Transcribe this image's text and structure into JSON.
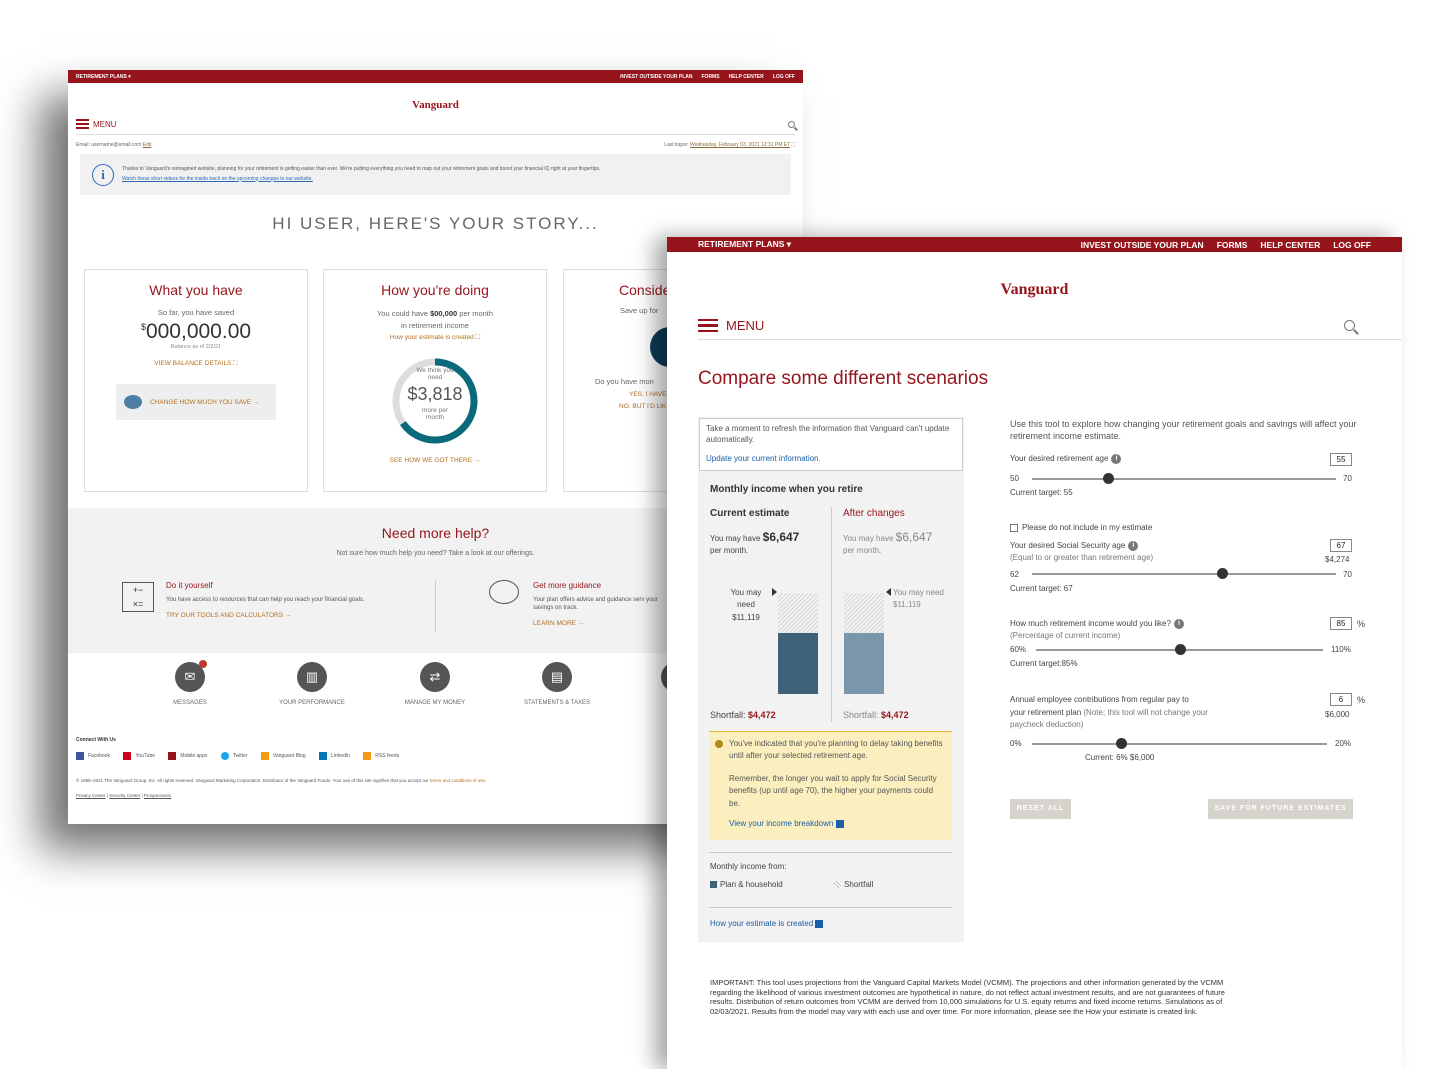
{
  "back": {
    "topbar": {
      "left": "RETIREMENT PLANS ▾",
      "links": [
        "INVEST OUTSIDE YOUR PLAN",
        "FORMS",
        "HELP CENTER",
        "LOG OFF"
      ]
    },
    "logo": "Vanguard",
    "menu": "MENU",
    "email": "Email: username@email.com",
    "edit": "Edit",
    "last_logon_label": "Last logon:",
    "last_logon": "Wednesday, February 03, 2021 12:31 PM ET",
    "info_text": "Thanks to Vanguard's reimagined website, planning for your retirement is getting easier than ever. We're putting everything you need to map out your retirement goals and boost your financial IQ right at your fingertips.",
    "info_link": "Watch these short videos for the inside track on the upcoming changes to our website.",
    "story": "HI USER, HERE'S YOUR STORY...",
    "card1": {
      "title": "What you have",
      "sub": "So far, you have saved",
      "amount": "000,000.00",
      "currency": "$",
      "balance": "Balance as of 2/2/21",
      "link": "VIEW BALANCE DETAILS ⛶",
      "button": "CHANGE HOW MUCH YOU SAVE →"
    },
    "card2": {
      "title": "How you're doing",
      "line1a": "You could have ",
      "line1b": "$00,000",
      "line1c": " per month",
      "line2": "in retirement income",
      "link1": "How your estimate is created ⛶",
      "ring_top": "We think you need",
      "ring_amount": "$3,818",
      "ring_bottom": "more per month",
      "link2": "SEE HOW WE GOT THERE →"
    },
    "card3": {
      "title": "Conside",
      "sub": "Save up for",
      "q": "Do you have mon",
      "opt1": "YES, I HAVE",
      "opt2": "NO, BUT I'D LIK"
    },
    "help": {
      "title": "Need more help?",
      "sub": "Not sure how much help you need? Take a look at our offerings.",
      "diy_title": "Do it yourself",
      "diy_text": "You have access to resources that can help you reach your financial goals.",
      "diy_link": "TRY OUR TOOLS AND CALCULATORS →",
      "guid_title": "Get more guidance",
      "guid_text": "Your plan offers advice and guidance serv your savings on track.",
      "guid_link": "LEARN MORE →"
    },
    "icons": [
      "MESSAGES",
      "YOUR PERFORMANCE",
      "MANAGE MY MONEY",
      "STATEMENTS & TAXES"
    ],
    "connect": "Connect With Us",
    "social": [
      "Facebook",
      "YouTube",
      "Mobile apps",
      "Twitter",
      "Vanguard Blog",
      "LinkedIn",
      "RSS feeds"
    ],
    "copyright": "© 1995–2021 The Vanguard Group, Inc. All rights reserved. Vanguard Marketing Corporation, Distributor of the Vanguard Funds. Your use of this site signifies that you accept our",
    "terms": "terms and conditions of use.",
    "footer_links": [
      "Privacy Center",
      "Security Center",
      "Prospectuses"
    ]
  },
  "front": {
    "topbar": {
      "left": "RETIREMENT PLANS ▾",
      "links": [
        "INVEST OUTSIDE YOUR PLAN",
        "FORMS",
        "HELP CENTER",
        "LOG OFF"
      ]
    },
    "logo": "Vanguard",
    "menu": "MENU",
    "title": "Compare some different scenarios",
    "refresh_text": "Take a moment to refresh the information that Vanguard can't update automatically.",
    "refresh_link": "Update your current information.",
    "monthly_title": "Monthly income when you retire",
    "cur_label": "Current estimate",
    "after_label": "After changes",
    "may_have": "You may have",
    "cur_amount": "$6,647",
    "after_amount": "$6,647",
    "per_month": "per month.",
    "need_label": "You may need",
    "need_amount": "$11,119",
    "shortfall_label": "Shortfall:",
    "cur_shortfall": "$4,472",
    "after_shortfall": "$4,472",
    "bar_plan_fraction": 0.6,
    "alert1": "You've indicated that you're planning to delay taking benefits until after your selected retirement age.",
    "alert2": "Remember, the longer you wait to apply for Social Security benefits (up until age 70), the higher your payments could be.",
    "alert_link": "View your income breakdown",
    "legend_title": "Monthly income from:",
    "legend_plan": "Plan & household",
    "legend_short": "Shortfall",
    "estimate_link": "How your estimate is created",
    "intro": "Use this tool to explore how changing your retirement goals and savings will affect your retirement income estimate.",
    "s1": {
      "label": "Your desired retirement age",
      "value": "55",
      "min": "50",
      "max": "70",
      "target": "Current target: 55",
      "fraction": 0.25
    },
    "checkbox": "Please do not include in my estimate",
    "s2": {
      "label": "Your desired Social Security age",
      "note": "(Equal to or greater than retirement age)",
      "value": "67",
      "amount": "$4,274",
      "min": "62",
      "max": "70",
      "target": "Current target: 67",
      "fraction": 0.625
    },
    "s3": {
      "label": "How much retirement income would you like?",
      "note": "(Percentage of current income)",
      "value": "85",
      "unit": "%",
      "min": "60%",
      "max": "110%",
      "target": "Current target:85%",
      "fraction": 0.5
    },
    "s4": {
      "label1": "Annual employee contributions from regular pay to",
      "label2a": "your retirement plan ",
      "label2b": "(Note; this tool will not change your paycheck deduction)",
      "value": "6",
      "unit": "%",
      "amount": "$6,000",
      "min": "0%",
      "max": "20%",
      "current": "Current: 6%  $6,000",
      "fraction": 0.3
    },
    "reset": "RESET ALL",
    "save": "SAVE FOR FUTURE ESTIMATES",
    "important": "IMPORTANT: This tool uses projections from the Vanguard Capital Markets Model (VCMM). The projections and other information generated by the VCMM regarding the likelihood of various investment outcomes are hypothetical in nature, do not reflect actual investment results, and are not guarantees of future results. Distribution of return outcomes from VCMM are derived from 10,000 simulations for U.S. equity returns and fixed income returns. Simulations as of 02/03/2021. Results from the model may vary with each use and over time. For more information, please see the How your estimate is created link.",
    "colors": {
      "brand": "#96151d",
      "bar_current": "#3f6178",
      "bar_after": "#7a96aa"
    }
  }
}
